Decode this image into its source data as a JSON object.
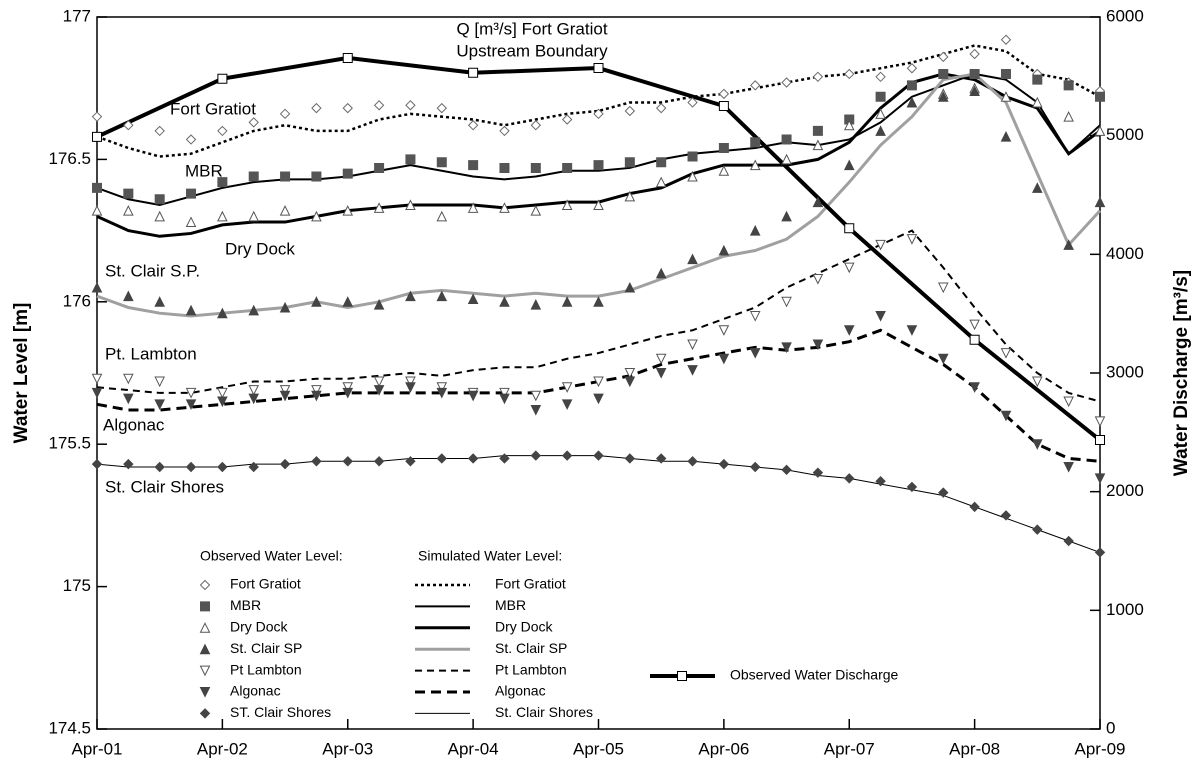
{
  "chart_data": {
    "type": "line",
    "ylabel": "Water Level [m]",
    "y2label": "Water Discharge [m³/s]",
    "xlim": [
      0,
      8
    ],
    "xticks": [
      {
        "value": 0,
        "label": "Apr-01"
      },
      {
        "value": 1,
        "label": "Apr-02"
      },
      {
        "value": 2,
        "label": "Apr-03"
      },
      {
        "value": 3,
        "label": "Apr-04"
      },
      {
        "value": 4,
        "label": "Apr-05"
      },
      {
        "value": 5,
        "label": "Apr-06"
      },
      {
        "value": 6,
        "label": "Apr-07"
      },
      {
        "value": 7,
        "label": "Apr-08"
      },
      {
        "value": 8,
        "label": "Apr-09"
      }
    ],
    "ylim": [
      174.5,
      177
    ],
    "yticks": [
      174.5,
      175,
      175.5,
      176,
      176.5,
      177
    ],
    "y2lim": [
      0,
      6000
    ],
    "y2ticks": [
      0,
      1000,
      2000,
      3000,
      4000,
      5000,
      6000
    ],
    "annotations": [
      "Q [m³/s] Fort Gratiot",
      "Upstream Boundary",
      "Fort Gratiot",
      "MBR",
      "Dry Dock",
      "St. Clair S.P.",
      "Pt. Lambton",
      "Algonac",
      "St. Clair Shores"
    ],
    "legend_titles": [
      "Observed Water Level:",
      "Simulated Water Level:"
    ],
    "x": [
      0,
      0.25,
      0.5,
      0.75,
      1,
      1.25,
      1.5,
      1.75,
      2,
      2.25,
      2.5,
      2.75,
      3,
      3.25,
      3.5,
      3.75,
      4,
      4.25,
      4.5,
      4.75,
      5,
      5.25,
      5.5,
      5.75,
      6,
      6.25,
      6.5,
      6.75,
      7,
      7.25,
      7.5,
      7.75,
      8
    ],
    "series": [
      {
        "name": "Fort Gratiot",
        "style": "diamond-open",
        "color": "#6a6a6a",
        "values": [
          176.65,
          176.62,
          176.6,
          176.57,
          176.6,
          176.63,
          176.66,
          176.68,
          176.68,
          176.69,
          176.69,
          176.68,
          176.62,
          176.6,
          176.62,
          176.64,
          176.66,
          176.67,
          176.68,
          176.7,
          176.73,
          176.76,
          176.77,
          176.79,
          176.8,
          176.79,
          176.82,
          176.86,
          176.87,
          176.92,
          176.8,
          176.77,
          176.74
        ]
      },
      {
        "name": "MBR",
        "style": "square",
        "color": "#555555",
        "values": [
          176.4,
          176.38,
          176.36,
          176.38,
          176.42,
          176.44,
          176.44,
          176.44,
          176.45,
          176.47,
          176.5,
          176.49,
          176.48,
          176.47,
          176.47,
          176.47,
          176.48,
          176.49,
          176.49,
          176.51,
          176.54,
          176.56,
          176.57,
          176.6,
          176.64,
          176.72,
          176.76,
          176.8,
          176.8,
          176.8,
          176.78,
          176.76,
          176.72
        ]
      },
      {
        "name": "Dry Dock",
        "style": "triangle-open",
        "color": "#555555",
        "values": [
          176.32,
          176.32,
          176.3,
          176.28,
          176.3,
          176.3,
          176.32,
          176.3,
          176.32,
          176.33,
          176.34,
          176.3,
          176.33,
          176.33,
          176.32,
          176.34,
          176.34,
          176.37,
          176.42,
          176.44,
          176.46,
          176.48,
          176.5,
          176.55,
          176.62,
          176.66,
          176.7,
          176.73,
          176.75,
          176.72,
          176.7,
          176.65,
          176.6
        ]
      },
      {
        "name": "St. Clair SP",
        "style": "triangle",
        "color": "#444444",
        "values": [
          176.05,
          176.02,
          176.0,
          175.97,
          175.96,
          175.97,
          175.98,
          176.0,
          176.0,
          175.99,
          176.02,
          176.02,
          176.01,
          176.0,
          175.99,
          176.0,
          176.0,
          176.05,
          176.1,
          176.15,
          176.18,
          176.25,
          176.3,
          176.35,
          176.48,
          176.6,
          176.7,
          176.72,
          176.74,
          176.58,
          176.4,
          176.2,
          176.35
        ]
      },
      {
        "name": "Pt Lambton",
        "style": "triangle-down-open",
        "color": "#555555",
        "values": [
          175.73,
          175.73,
          175.72,
          175.68,
          175.68,
          175.69,
          175.69,
          175.69,
          175.7,
          175.72,
          175.72,
          175.7,
          175.68,
          175.68,
          175.67,
          175.7,
          175.72,
          175.75,
          175.8,
          175.85,
          175.9,
          175.95,
          176.0,
          176.08,
          176.12,
          176.2,
          176.22,
          176.05,
          175.92,
          175.82,
          175.72,
          175.65,
          175.58
        ]
      },
      {
        "name": "Algonac",
        "style": "triangle-down",
        "color": "#444444",
        "values": [
          175.68,
          175.66,
          175.64,
          175.64,
          175.65,
          175.66,
          175.67,
          175.67,
          175.68,
          175.69,
          175.7,
          175.68,
          175.67,
          175.66,
          175.62,
          175.64,
          175.66,
          175.72,
          175.75,
          175.76,
          175.8,
          175.82,
          175.84,
          175.85,
          175.9,
          175.95,
          175.9,
          175.8,
          175.7,
          175.6,
          175.5,
          175.42,
          175.38
        ]
      },
      {
        "name": "ST. Clair Shores",
        "style": "diamond",
        "color": "#444444",
        "values": [
          175.43,
          175.43,
          175.42,
          175.42,
          175.42,
          175.42,
          175.43,
          175.44,
          175.44,
          175.44,
          175.44,
          175.45,
          175.45,
          175.45,
          175.46,
          175.46,
          175.46,
          175.45,
          175.45,
          175.44,
          175.43,
          175.42,
          175.41,
          175.4,
          175.38,
          175.37,
          175.35,
          175.33,
          175.28,
          175.25,
          175.2,
          175.16,
          175.12
        ]
      },
      {
        "name": "Fort Gratiot",
        "style": "dotted",
        "color": "#000000",
        "values": [
          176.58,
          176.54,
          176.51,
          176.52,
          176.56,
          176.6,
          176.62,
          176.6,
          176.6,
          176.64,
          176.66,
          176.65,
          176.64,
          176.62,
          176.64,
          176.66,
          176.67,
          176.7,
          176.7,
          176.72,
          176.73,
          176.75,
          176.77,
          176.79,
          176.8,
          176.82,
          176.84,
          176.87,
          176.9,
          176.88,
          176.8,
          176.78,
          176.72
        ]
      },
      {
        "name": "MBR",
        "style": "solid",
        "color": "#000000",
        "values": [
          176.4,
          176.36,
          176.34,
          176.37,
          176.4,
          176.42,
          176.43,
          176.43,
          176.44,
          176.46,
          176.48,
          176.46,
          176.44,
          176.43,
          176.44,
          176.46,
          176.46,
          176.47,
          176.5,
          176.52,
          176.53,
          176.54,
          176.56,
          176.55,
          176.57,
          176.63,
          176.72,
          176.76,
          176.8,
          176.78,
          176.7,
          176.52,
          176.62
        ]
      },
      {
        "name": "Dry Dock",
        "style": "thick",
        "color": "#000000",
        "values": [
          176.3,
          176.25,
          176.23,
          176.24,
          176.27,
          176.28,
          176.28,
          176.3,
          176.32,
          176.33,
          176.34,
          176.34,
          176.34,
          176.33,
          176.34,
          176.35,
          176.35,
          176.38,
          176.4,
          176.45,
          176.48,
          176.48,
          176.48,
          176.5,
          176.56,
          176.68,
          176.77,
          176.8,
          176.78,
          176.72,
          176.68,
          176.52,
          176.6
        ]
      },
      {
        "name": "St. Clair SP",
        "style": "thick",
        "color": "#a0a0a0",
        "values": [
          176.02,
          175.98,
          175.96,
          175.95,
          175.96,
          175.97,
          175.98,
          176.0,
          175.98,
          176.0,
          176.03,
          176.04,
          176.03,
          176.02,
          176.03,
          176.02,
          176.02,
          176.04,
          176.08,
          176.12,
          176.16,
          176.18,
          176.22,
          176.3,
          176.42,
          176.55,
          176.65,
          176.78,
          176.8,
          176.7,
          176.45,
          176.2,
          176.32
        ]
      },
      {
        "name": "Pt Lambton",
        "style": "dashed",
        "color": "#000000",
        "values": [
          175.7,
          175.69,
          175.68,
          175.68,
          175.7,
          175.72,
          175.72,
          175.73,
          175.73,
          175.74,
          175.75,
          175.74,
          175.76,
          175.77,
          175.77,
          175.8,
          175.82,
          175.85,
          175.88,
          175.9,
          175.94,
          175.98,
          176.05,
          176.1,
          176.15,
          176.2,
          176.25,
          176.12,
          175.98,
          175.85,
          175.75,
          175.68,
          175.65
        ]
      },
      {
        "name": "Algonac",
        "style": "thick-dashed",
        "color": "#000000",
        "values": [
          175.64,
          175.62,
          175.62,
          175.63,
          175.64,
          175.65,
          175.66,
          175.67,
          175.68,
          175.68,
          175.68,
          175.68,
          175.68,
          175.68,
          175.68,
          175.7,
          175.72,
          175.74,
          175.78,
          175.8,
          175.82,
          175.84,
          175.83,
          175.84,
          175.86,
          175.9,
          175.84,
          175.78,
          175.7,
          175.6,
          175.5,
          175.45,
          175.44
        ]
      },
      {
        "name": "St. Clair Shores",
        "style": "thin",
        "color": "#000000",
        "values": [
          175.43,
          175.42,
          175.42,
          175.42,
          175.42,
          175.43,
          175.43,
          175.44,
          175.44,
          175.44,
          175.45,
          175.45,
          175.45,
          175.46,
          175.46,
          175.46,
          175.46,
          175.45,
          175.44,
          175.44,
          175.43,
          175.42,
          175.41,
          175.39,
          175.38,
          175.36,
          175.34,
          175.32,
          175.28,
          175.24,
          175.2,
          175.16,
          175.12
        ]
      },
      {
        "name": "Observed Water Discharge",
        "style": "line-square",
        "color": "#000000",
        "axis": "y2",
        "x": [
          0,
          1,
          2,
          3,
          4,
          5,
          6,
          7,
          8
        ],
        "values": [
          4990,
          5480,
          5655,
          5530,
          5570,
          5250,
          4220,
          3280,
          2435
        ]
      }
    ]
  }
}
